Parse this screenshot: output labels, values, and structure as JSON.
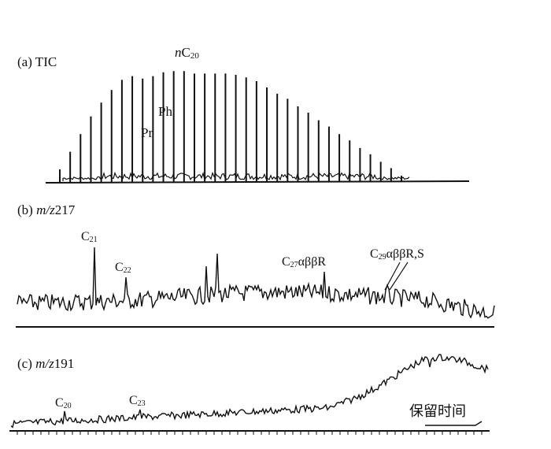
{
  "chart_data": [
    {
      "type": "line",
      "panel_label": "(a) TIC",
      "description_peaks": "n-alkane homologous series, maximum near nC20",
      "series": [
        {
          "values": [
            0.1,
            0.24,
            0.38,
            0.52,
            0.63,
            0.73,
            0.81,
            0.84,
            0.82,
            0.84,
            0.87,
            0.88,
            0.88,
            0.86,
            0.86,
            0.86,
            0.86,
            0.85,
            0.83,
            0.8,
            0.75,
            0.7,
            0.66,
            0.6,
            0.55,
            0.49,
            0.44,
            0.38,
            0.33,
            0.27,
            0.22,
            0.16,
            0.11,
            0.05
          ]
        }
      ],
      "annotations": {
        "nc20": {
          "pre": "n",
          "main": "C",
          "sub": "20"
        },
        "pr": "Pr",
        "ph": "Ph"
      }
    },
    {
      "type": "line",
      "panel_label": {
        "pre": "(b) ",
        "italic": "m/z",
        "post": "217"
      },
      "annotations": {
        "c21": {
          "main": "C",
          "sub": "21"
        },
        "c22": {
          "main": "C",
          "sub": "22"
        },
        "c27": {
          "main": "C",
          "sub": "27",
          "tail": "αββR"
        },
        "c29": {
          "main": "C",
          "sub": "29",
          "tail": "αββR,S"
        }
      }
    },
    {
      "type": "line",
      "panel_label": {
        "pre": "(c) ",
        "italic": "m/z",
        "post": "191"
      },
      "annotations": {
        "c20": {
          "main": "C",
          "sub": "20"
        },
        "c23": {
          "main": "C",
          "sub": "23"
        }
      },
      "xlabel": "保留时间"
    }
  ]
}
